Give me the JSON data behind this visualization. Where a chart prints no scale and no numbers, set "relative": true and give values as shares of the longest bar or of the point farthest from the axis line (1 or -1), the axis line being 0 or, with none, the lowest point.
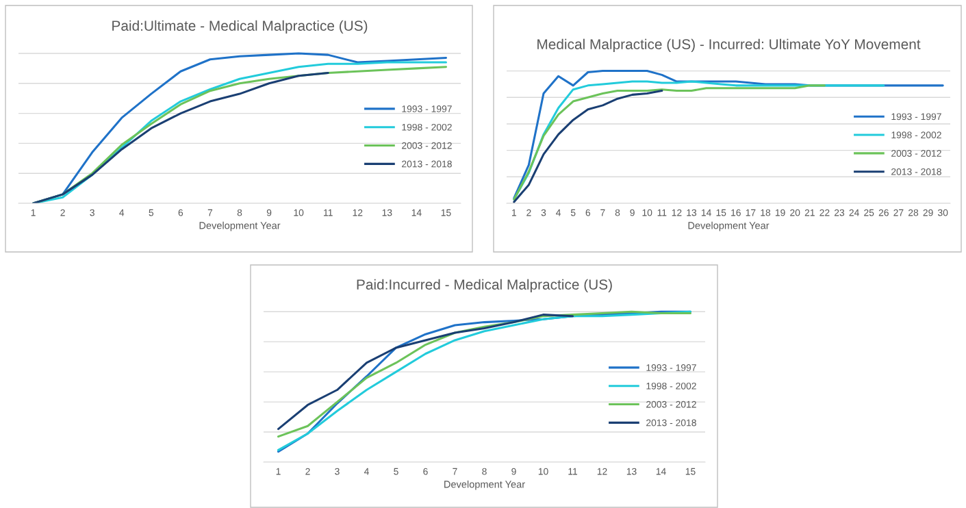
{
  "chart_data": [
    {
      "type": "line",
      "title": "Paid:Ultimate - Medical Malpractice (US)",
      "xlabel": "Development Year",
      "relative": true,
      "grid": "y",
      "legend": "right",
      "line_style": "solid",
      "categories": [
        "1",
        "2",
        "3",
        "4",
        "5",
        "6",
        "7",
        "8",
        "9",
        "10",
        "11",
        "12",
        "13",
        "14",
        "15"
      ],
      "series": [
        {
          "name": "1993 - 1997",
          "color": "#1f72c8",
          "values": [
            0,
            0.06,
            0.34,
            0.57,
            0.73,
            0.88,
            0.96,
            0.98,
            0.99,
            1,
            0.99,
            0.94,
            0.95,
            0.96,
            0.97
          ]
        },
        {
          "name": "1998 - 2002",
          "color": "#22cbdb",
          "values": [
            0,
            0.04,
            0.19,
            0.37,
            0.55,
            0.68,
            0.76,
            0.83,
            0.87,
            0.91,
            0.93,
            0.93,
            0.94,
            0.94,
            0.94
          ]
        },
        {
          "name": "2003 - 2012",
          "color": "#6cc35a",
          "values": [
            0,
            0.06,
            0.2,
            0.39,
            0.53,
            0.66,
            0.75,
            0.8,
            0.83,
            0.85,
            0.87,
            0.88,
            0.89,
            0.9,
            0.91
          ]
        },
        {
          "name": "2013 - 2018",
          "color": "#1a3f73",
          "values": [
            0,
            0.06,
            0.19,
            0.36,
            0.5,
            0.6,
            0.68,
            0.73,
            0.8,
            0.85,
            0.87,
            null,
            null,
            null,
            null
          ]
        }
      ]
    },
    {
      "type": "line",
      "title": "Medical Malpractice (US) - Incurred: Ultimate YoY Movement",
      "xlabel": "Development Year",
      "relative": true,
      "grid": "y",
      "legend": "right",
      "line_style": "solid",
      "categories": [
        "1",
        "2",
        "3",
        "4",
        "5",
        "6",
        "7",
        "8",
        "9",
        "10",
        "11",
        "12",
        "13",
        "14",
        "15",
        "16",
        "17",
        "18",
        "19",
        "20",
        "21",
        "22",
        "23",
        "24",
        "25",
        "26",
        "27",
        "28",
        "29",
        "30"
      ],
      "series": [
        {
          "name": "1993 - 1997",
          "color": "#1f72c8",
          "values": [
            0.04,
            0.29,
            0.83,
            0.96,
            0.89,
            0.99,
            1,
            1,
            1,
            1,
            0.97,
            0.92,
            0.92,
            0.92,
            0.92,
            0.92,
            0.91,
            0.9,
            0.9,
            0.9,
            0.89,
            0.89,
            0.89,
            0.89,
            0.89,
            0.89,
            0.89,
            0.89,
            0.89,
            0.89
          ]
        },
        {
          "name": "1998 - 2002",
          "color": "#22cbdb",
          "values": [
            0.03,
            0.23,
            0.52,
            0.72,
            0.86,
            0.89,
            0.9,
            0.91,
            0.92,
            0.92,
            0.91,
            0.91,
            0.92,
            0.91,
            0.9,
            0.89,
            0.89,
            0.89,
            0.89,
            0.89,
            0.89,
            0.89,
            0.89,
            0.89,
            0.89,
            0.89,
            null,
            null,
            null,
            null
          ]
        },
        {
          "name": "2003 - 2012",
          "color": "#6cc35a",
          "values": [
            0.03,
            0.24,
            0.51,
            0.67,
            0.77,
            0.8,
            0.83,
            0.85,
            0.85,
            0.85,
            0.86,
            0.85,
            0.85,
            0.87,
            0.87,
            0.87,
            0.87,
            0.87,
            0.87,
            0.87,
            0.89,
            0.89,
            null,
            null,
            null,
            null,
            null,
            null,
            null,
            null
          ]
        },
        {
          "name": "2013 - 2018",
          "color": "#1a3f73",
          "values": [
            0.01,
            0.14,
            0.37,
            0.52,
            0.63,
            0.71,
            0.74,
            0.79,
            0.82,
            0.83,
            0.85,
            null,
            null,
            null,
            null,
            null,
            null,
            null,
            null,
            null,
            null,
            null,
            null,
            null,
            null,
            null,
            null,
            null,
            null,
            null
          ]
        }
      ]
    },
    {
      "type": "line",
      "title": "Paid:Incurred - Medical Malpractice (US)",
      "xlabel": "Development Year",
      "relative": true,
      "grid": "y",
      "legend": "right",
      "line_style": "solid",
      "categories": [
        "1",
        "2",
        "3",
        "4",
        "5",
        "6",
        "7",
        "8",
        "9",
        "10",
        "11",
        "12",
        "13",
        "14",
        "15"
      ],
      "series": [
        {
          "name": "1993 - 1997",
          "color": "#1f72c8",
          "values": [
            0.07,
            0.19,
            0.39,
            0.57,
            0.76,
            0.85,
            0.91,
            0.93,
            0.94,
            0.95,
            0.97,
            0.98,
            0.99,
            1,
            1
          ]
        },
        {
          "name": "1998 - 2002",
          "color": "#22cbdb",
          "values": [
            0.08,
            0.19,
            0.34,
            0.48,
            0.6,
            0.72,
            0.81,
            0.87,
            0.91,
            0.95,
            0.97,
            0.97,
            0.98,
            0.99,
            1
          ]
        },
        {
          "name": "2003 - 2012",
          "color": "#6cc35a",
          "values": [
            0.17,
            0.24,
            0.4,
            0.56,
            0.66,
            0.78,
            0.86,
            0.9,
            0.93,
            0.97,
            0.98,
            0.99,
            1,
            0.99,
            0.99
          ]
        },
        {
          "name": "2013 - 2018",
          "color": "#1a3f73",
          "values": [
            0.22,
            0.38,
            0.48,
            0.66,
            0.76,
            0.81,
            0.86,
            0.89,
            0.93,
            0.98,
            0.97,
            null,
            null,
            null,
            null
          ]
        }
      ]
    }
  ]
}
